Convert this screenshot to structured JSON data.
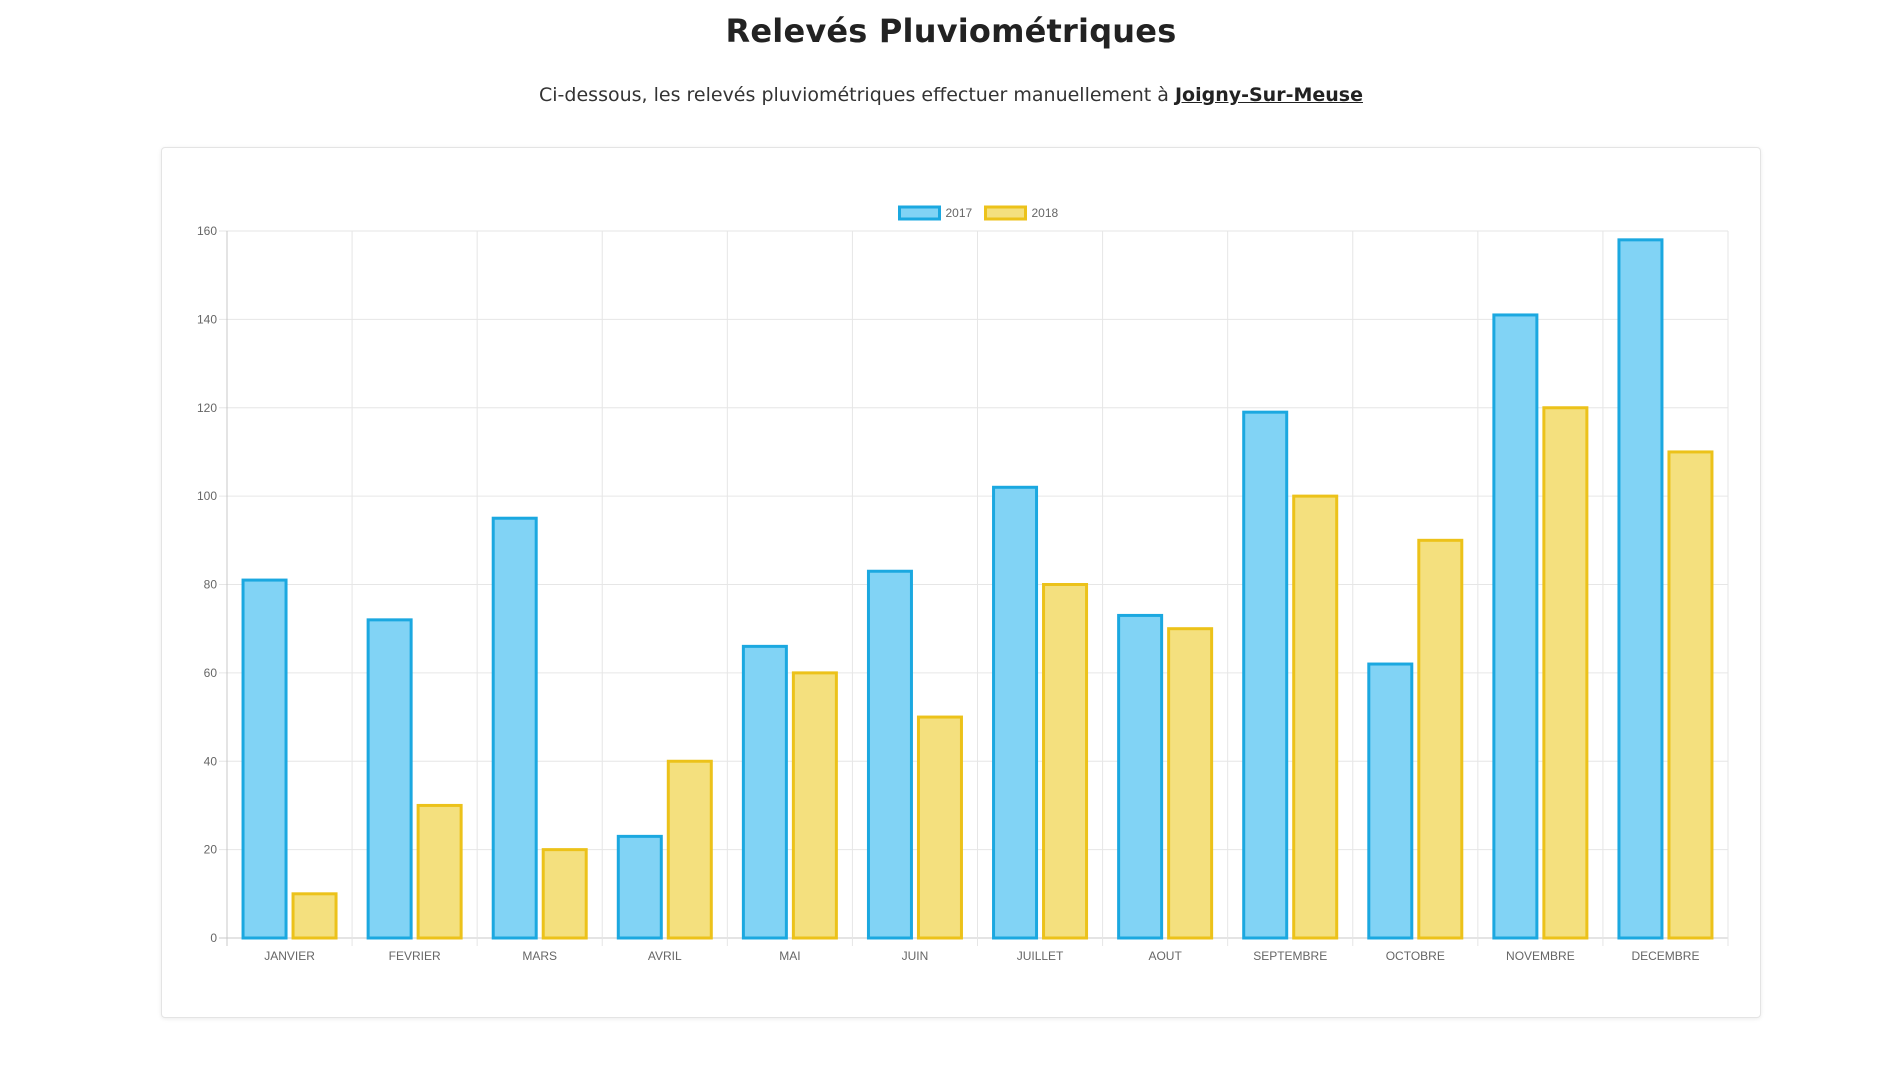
{
  "header": {
    "title": "Relevés Pluviométriques"
  },
  "intro": {
    "text": "Ci-dessous, les relevés pluviométriques effectuer manuellement à ",
    "city": "Joigny-Sur-Meuse"
  },
  "chart_data": {
    "type": "bar",
    "categories": [
      "JANVIER",
      "FEVRIER",
      "MARS",
      "AVRIL",
      "MAI",
      "JUIN",
      "JUILLET",
      "AOUT",
      "SEPTEMBRE",
      "OCTOBRE",
      "NOVEMBRE",
      "DECEMBRE"
    ],
    "series": [
      {
        "name": "2017",
        "values": [
          81,
          72,
          95,
          23,
          66,
          83,
          102,
          73,
          119,
          62,
          141,
          158
        ],
        "fill": "#81d3f5",
        "stroke": "#1ba8e0"
      },
      {
        "name": "2018",
        "values": [
          10,
          30,
          20,
          40,
          60,
          50,
          80,
          70,
          100,
          90,
          120,
          110
        ],
        "fill": "#f4e07e",
        "stroke": "#ecc21a"
      }
    ],
    "ylim": [
      0,
      160
    ],
    "yticks": [
      0,
      20,
      40,
      60,
      80,
      100,
      120,
      140,
      160
    ],
    "grid": true,
    "legend_position": "top-center"
  }
}
